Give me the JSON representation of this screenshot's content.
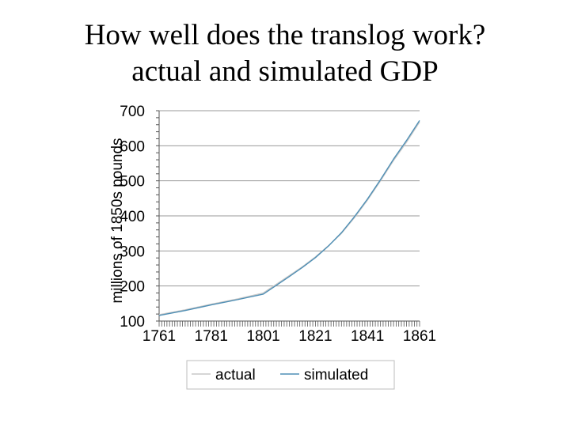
{
  "slide": {
    "title_line1": "How well does the translog work?",
    "title_line2": "actual and simulated GDP"
  },
  "chart_data": {
    "type": "line",
    "ylabel": "millions of 1850s pounds",
    "xlabel": "",
    "ylim": [
      100,
      700
    ],
    "xlim": [
      1761,
      1861
    ],
    "y_ticks": [
      100,
      200,
      300,
      400,
      500,
      600,
      700
    ],
    "x_ticks": [
      1761,
      1781,
      1801,
      1821,
      1841,
      1861
    ],
    "grid": "horizontal",
    "legend_position": "bottom",
    "colors": {
      "actual": "#c8c8c8",
      "simulated": "#4f8fb5"
    },
    "series": [
      {
        "name": "actual",
        "x": [
          1761,
          1771,
          1781,
          1791,
          1801,
          1806,
          1811,
          1816,
          1821,
          1826,
          1831,
          1836,
          1841,
          1846,
          1851,
          1856,
          1861
        ],
        "values": [
          118,
          132,
          148,
          163,
          180,
          205,
          230,
          255,
          283,
          315,
          350,
          395,
          445,
          500,
          558,
          610,
          668
        ]
      },
      {
        "name": "simulated",
        "x": [
          1761,
          1771,
          1781,
          1791,
          1801,
          1806,
          1811,
          1816,
          1821,
          1826,
          1831,
          1836,
          1841,
          1846,
          1851,
          1856,
          1861
        ],
        "values": [
          116,
          130,
          146,
          161,
          177,
          202,
          227,
          253,
          281,
          314,
          352,
          398,
          448,
          503,
          562,
          615,
          672
        ]
      }
    ]
  }
}
